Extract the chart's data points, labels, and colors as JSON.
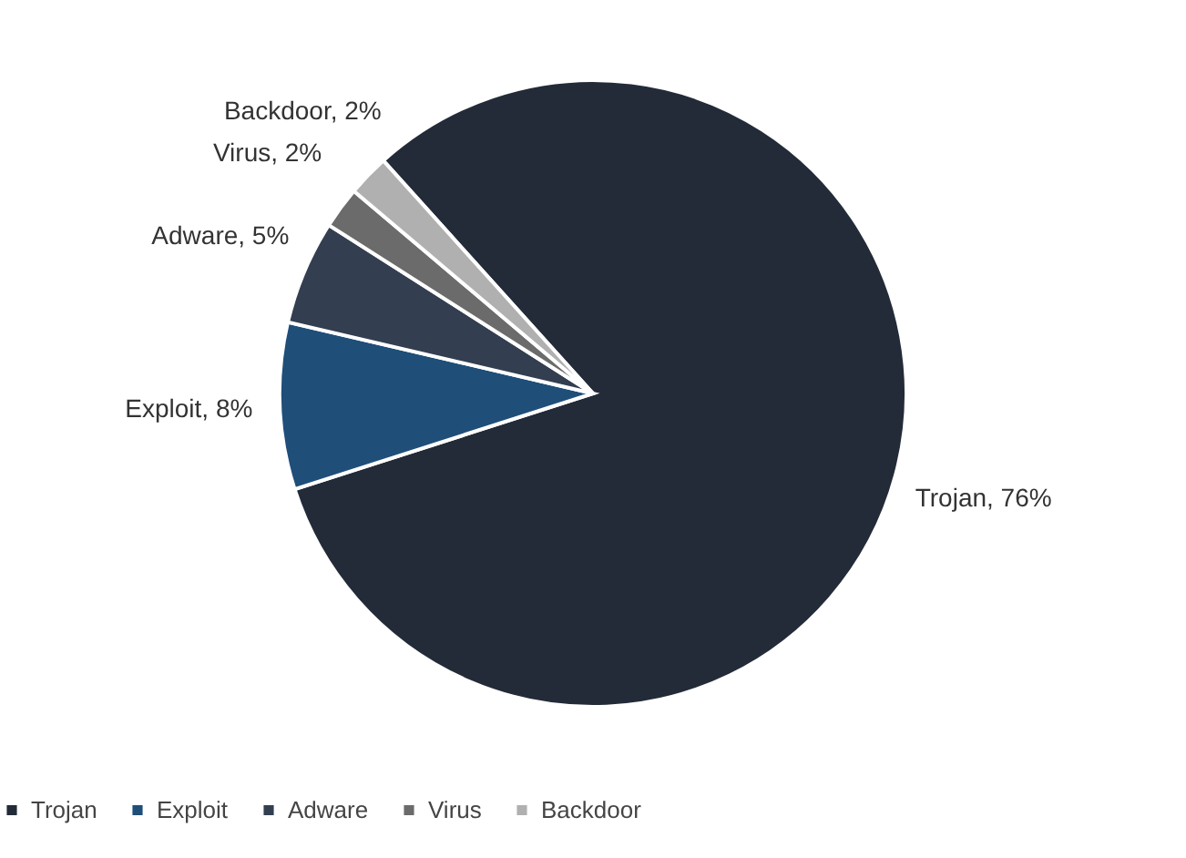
{
  "chart_data": {
    "type": "pie",
    "categories": [
      "Trojan",
      "Exploit",
      "Adware",
      "Virus",
      "Backdoor"
    ],
    "values": [
      76,
      8,
      5,
      2,
      2
    ],
    "colors": [
      "#232b38",
      "#1f4e79",
      "#333f50",
      "#6b6b6b",
      "#b0b0b0"
    ],
    "value_labels": [
      "Trojan, 76%",
      "Exploit, 8%",
      "Adware, 5%",
      "Virus, 2%",
      "Backdoor, 2%"
    ],
    "legend": "bottom"
  }
}
